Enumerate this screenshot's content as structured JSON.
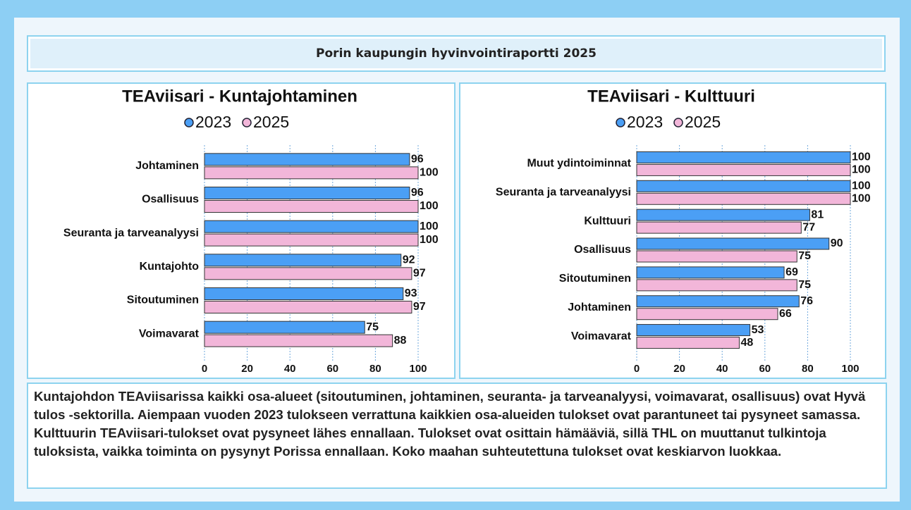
{
  "header": {
    "title": "Porin kaupungin hyvinvointiraportti 2025"
  },
  "chart_data": [
    {
      "type": "bar",
      "orientation": "horizontal",
      "title": "TEAviisari - Kuntajohtaminen",
      "categories": [
        "Johtaminen",
        "Osallisuus",
        "Seuranta ja tarveanalyysi",
        "Kuntajohto",
        "Sitoutuminen",
        "Voimavarat"
      ],
      "series": [
        {
          "name": "2023",
          "color": "#4b9ff5",
          "values": [
            96,
            96,
            100,
            92,
            93,
            75
          ]
        },
        {
          "name": "2025",
          "color": "#f2b6d9",
          "values": [
            100,
            100,
            100,
            97,
            97,
            88
          ]
        }
      ],
      "xlim": [
        0,
        100
      ],
      "xticks": [
        0,
        20,
        40,
        60,
        80,
        100
      ],
      "grid": true,
      "legend": "top"
    },
    {
      "type": "bar",
      "orientation": "horizontal",
      "title": "TEAviisari - Kulttuuri",
      "categories": [
        "Muut ydintoiminnat",
        "Seuranta ja tarveanalyysi",
        "Kulttuuri",
        "Osallisuus",
        "Sitoutuminen",
        "Johtaminen",
        "Voimavarat"
      ],
      "series": [
        {
          "name": "2023",
          "color": "#4b9ff5",
          "values": [
            100,
            100,
            81,
            90,
            69,
            76,
            53
          ]
        },
        {
          "name": "2025",
          "color": "#f2b6d9",
          "values": [
            100,
            100,
            77,
            75,
            75,
            66,
            48
          ]
        }
      ],
      "xlim": [
        0,
        100
      ],
      "xticks": [
        0,
        20,
        40,
        60,
        80,
        100
      ],
      "grid": true,
      "legend": "top"
    }
  ],
  "summary": {
    "text": "Kuntajohdon TEAviisarissa kaikki osa-alueet (sitoutuminen, johtaminen, seuranta- ja tarveanalyysi, voimavarat, osallisuus) ovat Hyvä tulos -sektorilla. Aiempaan vuoden 2023 tulokseen verrattuna kaikkien osa-alueiden tulokset ovat parantuneet tai pysyneet samassa. Kulttuurin TEAviisari-tulokset ovat pysyneet lähes ennallaan. Tulokset ovat osittain hämääviä, sillä THL on muuttanut tulkintoja tuloksista, vaikka toiminta on pysynyt Porissa ennallaan. Koko maahan suhteutettuna tulokset ovat keskiarvon luokkaa."
  }
}
